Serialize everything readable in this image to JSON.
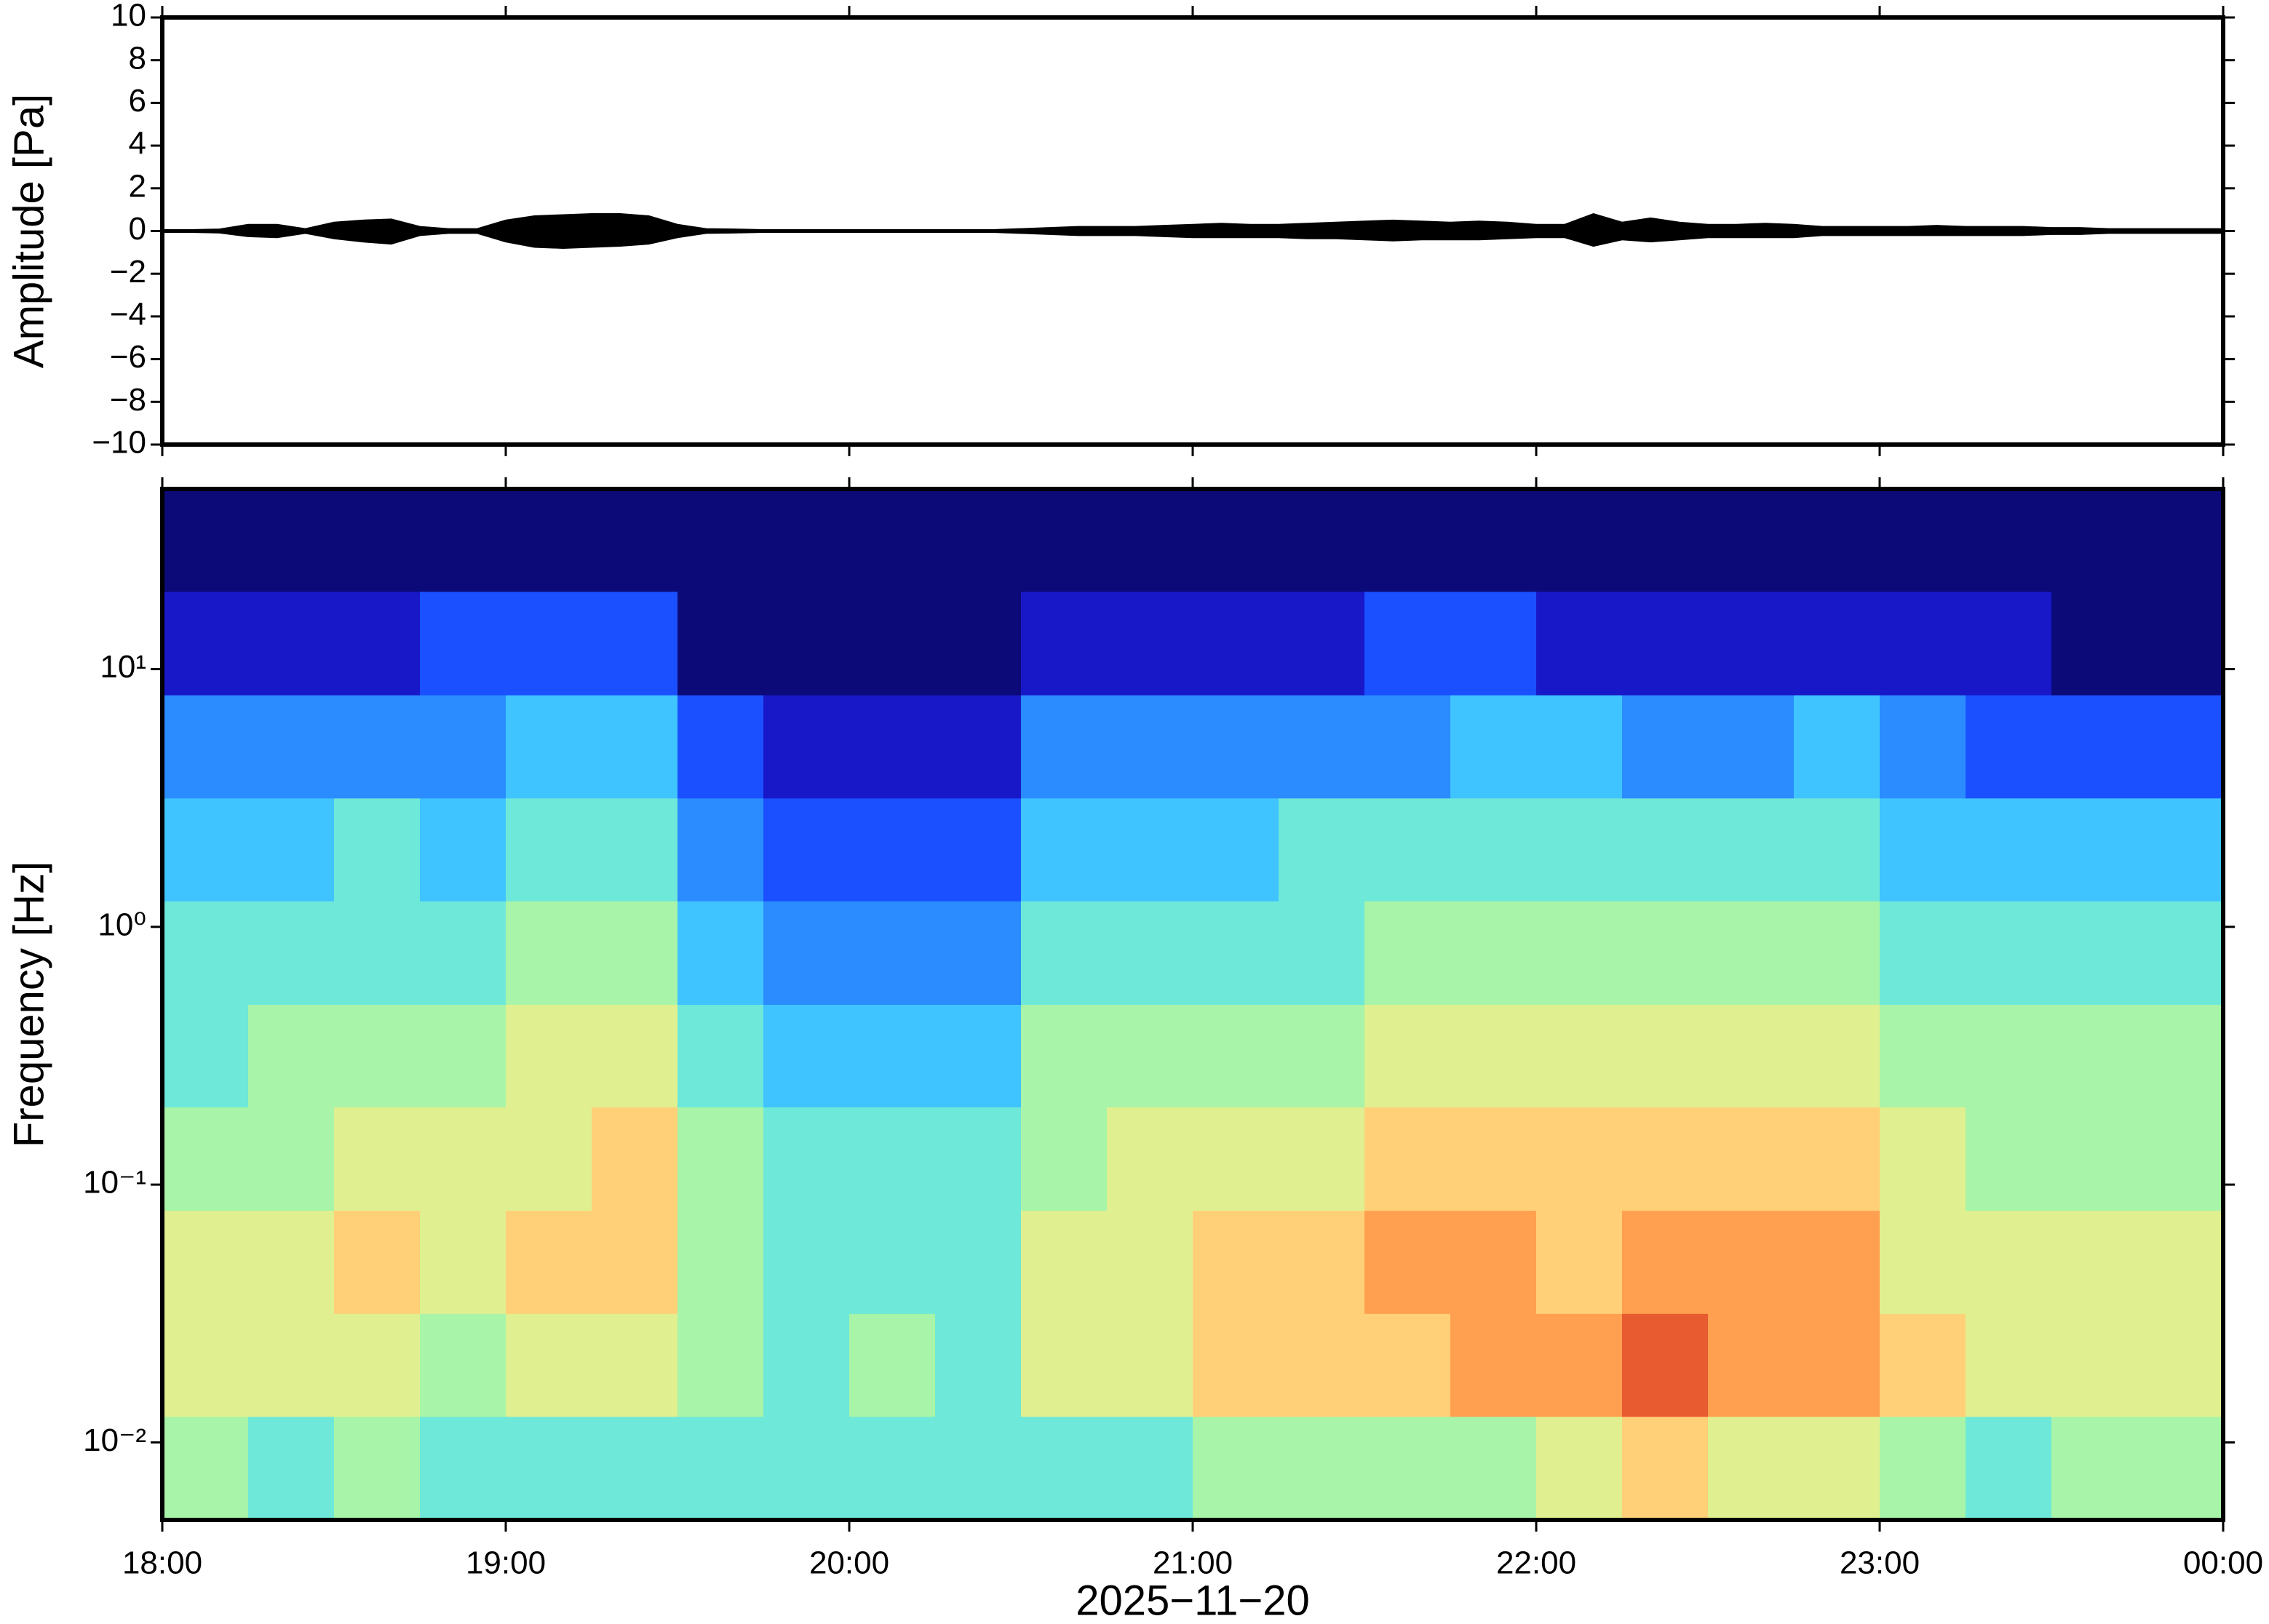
{
  "chart_data": [
    {
      "type": "envelope",
      "ylabel": "Amplitude [Pa]",
      "xlim": [
        0,
        360
      ],
      "xticks": [
        {
          "value": 0,
          "label": "18:00"
        },
        {
          "value": 60,
          "label": "19:00"
        },
        {
          "value": 120,
          "label": "20:00"
        },
        {
          "value": 180,
          "label": "21:00"
        },
        {
          "value": 240,
          "label": "22:00"
        },
        {
          "value": 300,
          "label": "23:00"
        },
        {
          "value": 360,
          "label": "00:00"
        }
      ],
      "ylim": [
        -10,
        10
      ],
      "yticks": [
        {
          "value": -10,
          "label": "−10"
        },
        {
          "value": -8,
          "label": "−8"
        },
        {
          "value": -6,
          "label": "−6"
        },
        {
          "value": -4,
          "label": "−4"
        },
        {
          "value": -2,
          "label": "−2"
        },
        0,
        2,
        4,
        6,
        8,
        10
      ],
      "color": "#000000",
      "x": [
        0,
        5,
        10,
        15,
        20,
        25,
        30,
        35,
        40,
        45,
        50,
        55,
        60,
        65,
        70,
        75,
        80,
        85,
        90,
        95,
        100,
        105,
        110,
        115,
        120,
        125,
        130,
        135,
        140,
        145,
        150,
        155,
        160,
        165,
        170,
        175,
        180,
        185,
        190,
        195,
        200,
        205,
        210,
        215,
        220,
        225,
        230,
        235,
        240,
        245,
        250,
        255,
        260,
        265,
        270,
        275,
        280,
        285,
        290,
        295,
        300,
        305,
        310,
        315,
        320,
        325,
        330,
        335,
        340,
        345,
        350,
        355,
        360
      ],
      "upper": [
        0.05,
        0.05,
        0.08,
        0.3,
        0.3,
        0.1,
        0.4,
        0.5,
        0.55,
        0.2,
        0.1,
        0.1,
        0.5,
        0.7,
        0.75,
        0.8,
        0.8,
        0.7,
        0.3,
        0.1,
        0.08,
        0.05,
        0.05,
        0.05,
        0.05,
        0.05,
        0.05,
        0.05,
        0.05,
        0.05,
        0.1,
        0.15,
        0.2,
        0.2,
        0.2,
        0.25,
        0.3,
        0.35,
        0.3,
        0.3,
        0.35,
        0.4,
        0.45,
        0.5,
        0.45,
        0.4,
        0.45,
        0.4,
        0.3,
        0.3,
        0.8,
        0.4,
        0.6,
        0.4,
        0.3,
        0.3,
        0.35,
        0.3,
        0.2,
        0.2,
        0.2,
        0.2,
        0.25,
        0.2,
        0.2,
        0.2,
        0.15,
        0.15,
        0.1,
        0.1,
        0.1,
        0.1,
        0.1
      ],
      "lower": [
        -0.05,
        -0.05,
        -0.08,
        -0.25,
        -0.3,
        -0.1,
        -0.35,
        -0.5,
        -0.6,
        -0.2,
        -0.1,
        -0.1,
        -0.5,
        -0.75,
        -0.8,
        -0.75,
        -0.7,
        -0.6,
        -0.3,
        -0.1,
        -0.08,
        -0.05,
        -0.05,
        -0.05,
        -0.05,
        -0.05,
        -0.05,
        -0.05,
        -0.05,
        -0.05,
        -0.1,
        -0.15,
        -0.2,
        -0.2,
        -0.2,
        -0.25,
        -0.3,
        -0.3,
        -0.3,
        -0.3,
        -0.35,
        -0.35,
        -0.4,
        -0.45,
        -0.4,
        -0.4,
        -0.4,
        -0.35,
        -0.3,
        -0.3,
        -0.7,
        -0.4,
        -0.5,
        -0.4,
        -0.3,
        -0.3,
        -0.3,
        -0.3,
        -0.2,
        -0.2,
        -0.2,
        -0.2,
        -0.2,
        -0.2,
        -0.2,
        -0.2,
        -0.15,
        -0.15,
        -0.1,
        -0.1,
        -0.1,
        -0.1,
        -0.1
      ]
    },
    {
      "type": "heatmap",
      "ylabel": "Frequency [Hz]",
      "xlabel": "2025−11−20",
      "xlim": [
        0,
        360
      ],
      "xticks": [
        {
          "value": 0,
          "label": "18:00"
        },
        {
          "value": 60,
          "label": "19:00"
        },
        {
          "value": 120,
          "label": "20:00"
        },
        {
          "value": 180,
          "label": "21:00"
        },
        {
          "value": 240,
          "label": "22:00"
        },
        {
          "value": 300,
          "label": "23:00"
        },
        {
          "value": 360,
          "label": "00:00"
        }
      ],
      "ylim": [
        0.005,
        50
      ],
      "log_y": true,
      "yticks": [
        {
          "value": 0.01,
          "label": "10⁻²"
        },
        {
          "value": 0.1,
          "label": "10⁻¹"
        },
        {
          "value": 1,
          "label": "10⁰"
        },
        {
          "value": 10,
          "label": "10¹"
        }
      ],
      "x_bins": [
        0,
        15,
        30,
        45,
        60,
        75,
        90,
        105,
        120,
        135,
        150,
        165,
        180,
        195,
        210,
        225,
        240,
        255,
        270,
        285,
        300,
        315,
        330,
        345,
        360
      ],
      "y_bins": [
        0.005,
        0.0126,
        0.0316,
        0.0794,
        0.2,
        0.5,
        1.26,
        3.16,
        7.94,
        20,
        50
      ],
      "colorscale": [
        "#0c0a78",
        "#1818c8",
        "#1a50ff",
        "#2a8cff",
        "#40c4ff",
        "#6ee8d8",
        "#a8f4a8",
        "#e0f090",
        "#ffd078",
        "#ffa050",
        "#e85a30"
      ],
      "z": [
        [
          6,
          7,
          7,
          6,
          5,
          5,
          4,
          3,
          1,
          0
        ],
        [
          5,
          7,
          7,
          6,
          6,
          5,
          4,
          3,
          1,
          0
        ],
        [
          6,
          7,
          8,
          7,
          6,
          5,
          5,
          3,
          1,
          0
        ],
        [
          5,
          6,
          7,
          7,
          6,
          5,
          4,
          3,
          2,
          0
        ],
        [
          5,
          7,
          8,
          7,
          7,
          6,
          5,
          4,
          2,
          0
        ],
        [
          5,
          7,
          8,
          8,
          7,
          6,
          5,
          4,
          2,
          0
        ],
        [
          5,
          6,
          6,
          6,
          5,
          4,
          3,
          2,
          0,
          0
        ],
        [
          5,
          5,
          5,
          5,
          4,
          3,
          2,
          1,
          0,
          0
        ],
        [
          5,
          6,
          5,
          5,
          4,
          3,
          2,
          1,
          0,
          0
        ],
        [
          5,
          5,
          5,
          5,
          4,
          3,
          2,
          1,
          0,
          0
        ],
        [
          5,
          7,
          7,
          6,
          6,
          5,
          4,
          3,
          1,
          0
        ],
        [
          5,
          7,
          7,
          7,
          6,
          5,
          4,
          3,
          1,
          0
        ],
        [
          6,
          8,
          8,
          7,
          6,
          5,
          4,
          3,
          1,
          0
        ],
        [
          6,
          8,
          8,
          7,
          6,
          5,
          5,
          3,
          1,
          0
        ],
        [
          6,
          8,
          9,
          8,
          7,
          6,
          5,
          3,
          2,
          0
        ],
        [
          6,
          9,
          9,
          8,
          7,
          6,
          5,
          4,
          2,
          0
        ],
        [
          7,
          9,
          8,
          8,
          7,
          6,
          5,
          4,
          1,
          0
        ],
        [
          8,
          10,
          9,
          8,
          7,
          6,
          5,
          3,
          1,
          0
        ],
        [
          7,
          9,
          9,
          8,
          7,
          6,
          5,
          3,
          1,
          0
        ],
        [
          7,
          9,
          9,
          8,
          7,
          6,
          5,
          4,
          1,
          0
        ],
        [
          6,
          8,
          7,
          7,
          6,
          5,
          4,
          3,
          1,
          0
        ],
        [
          5,
          7,
          7,
          6,
          6,
          5,
          4,
          2,
          1,
          0
        ],
        [
          6,
          7,
          7,
          6,
          6,
          5,
          4,
          2,
          0,
          0
        ],
        [
          6,
          7,
          7,
          6,
          6,
          5,
          4,
          2,
          0,
          0
        ]
      ]
    }
  ]
}
